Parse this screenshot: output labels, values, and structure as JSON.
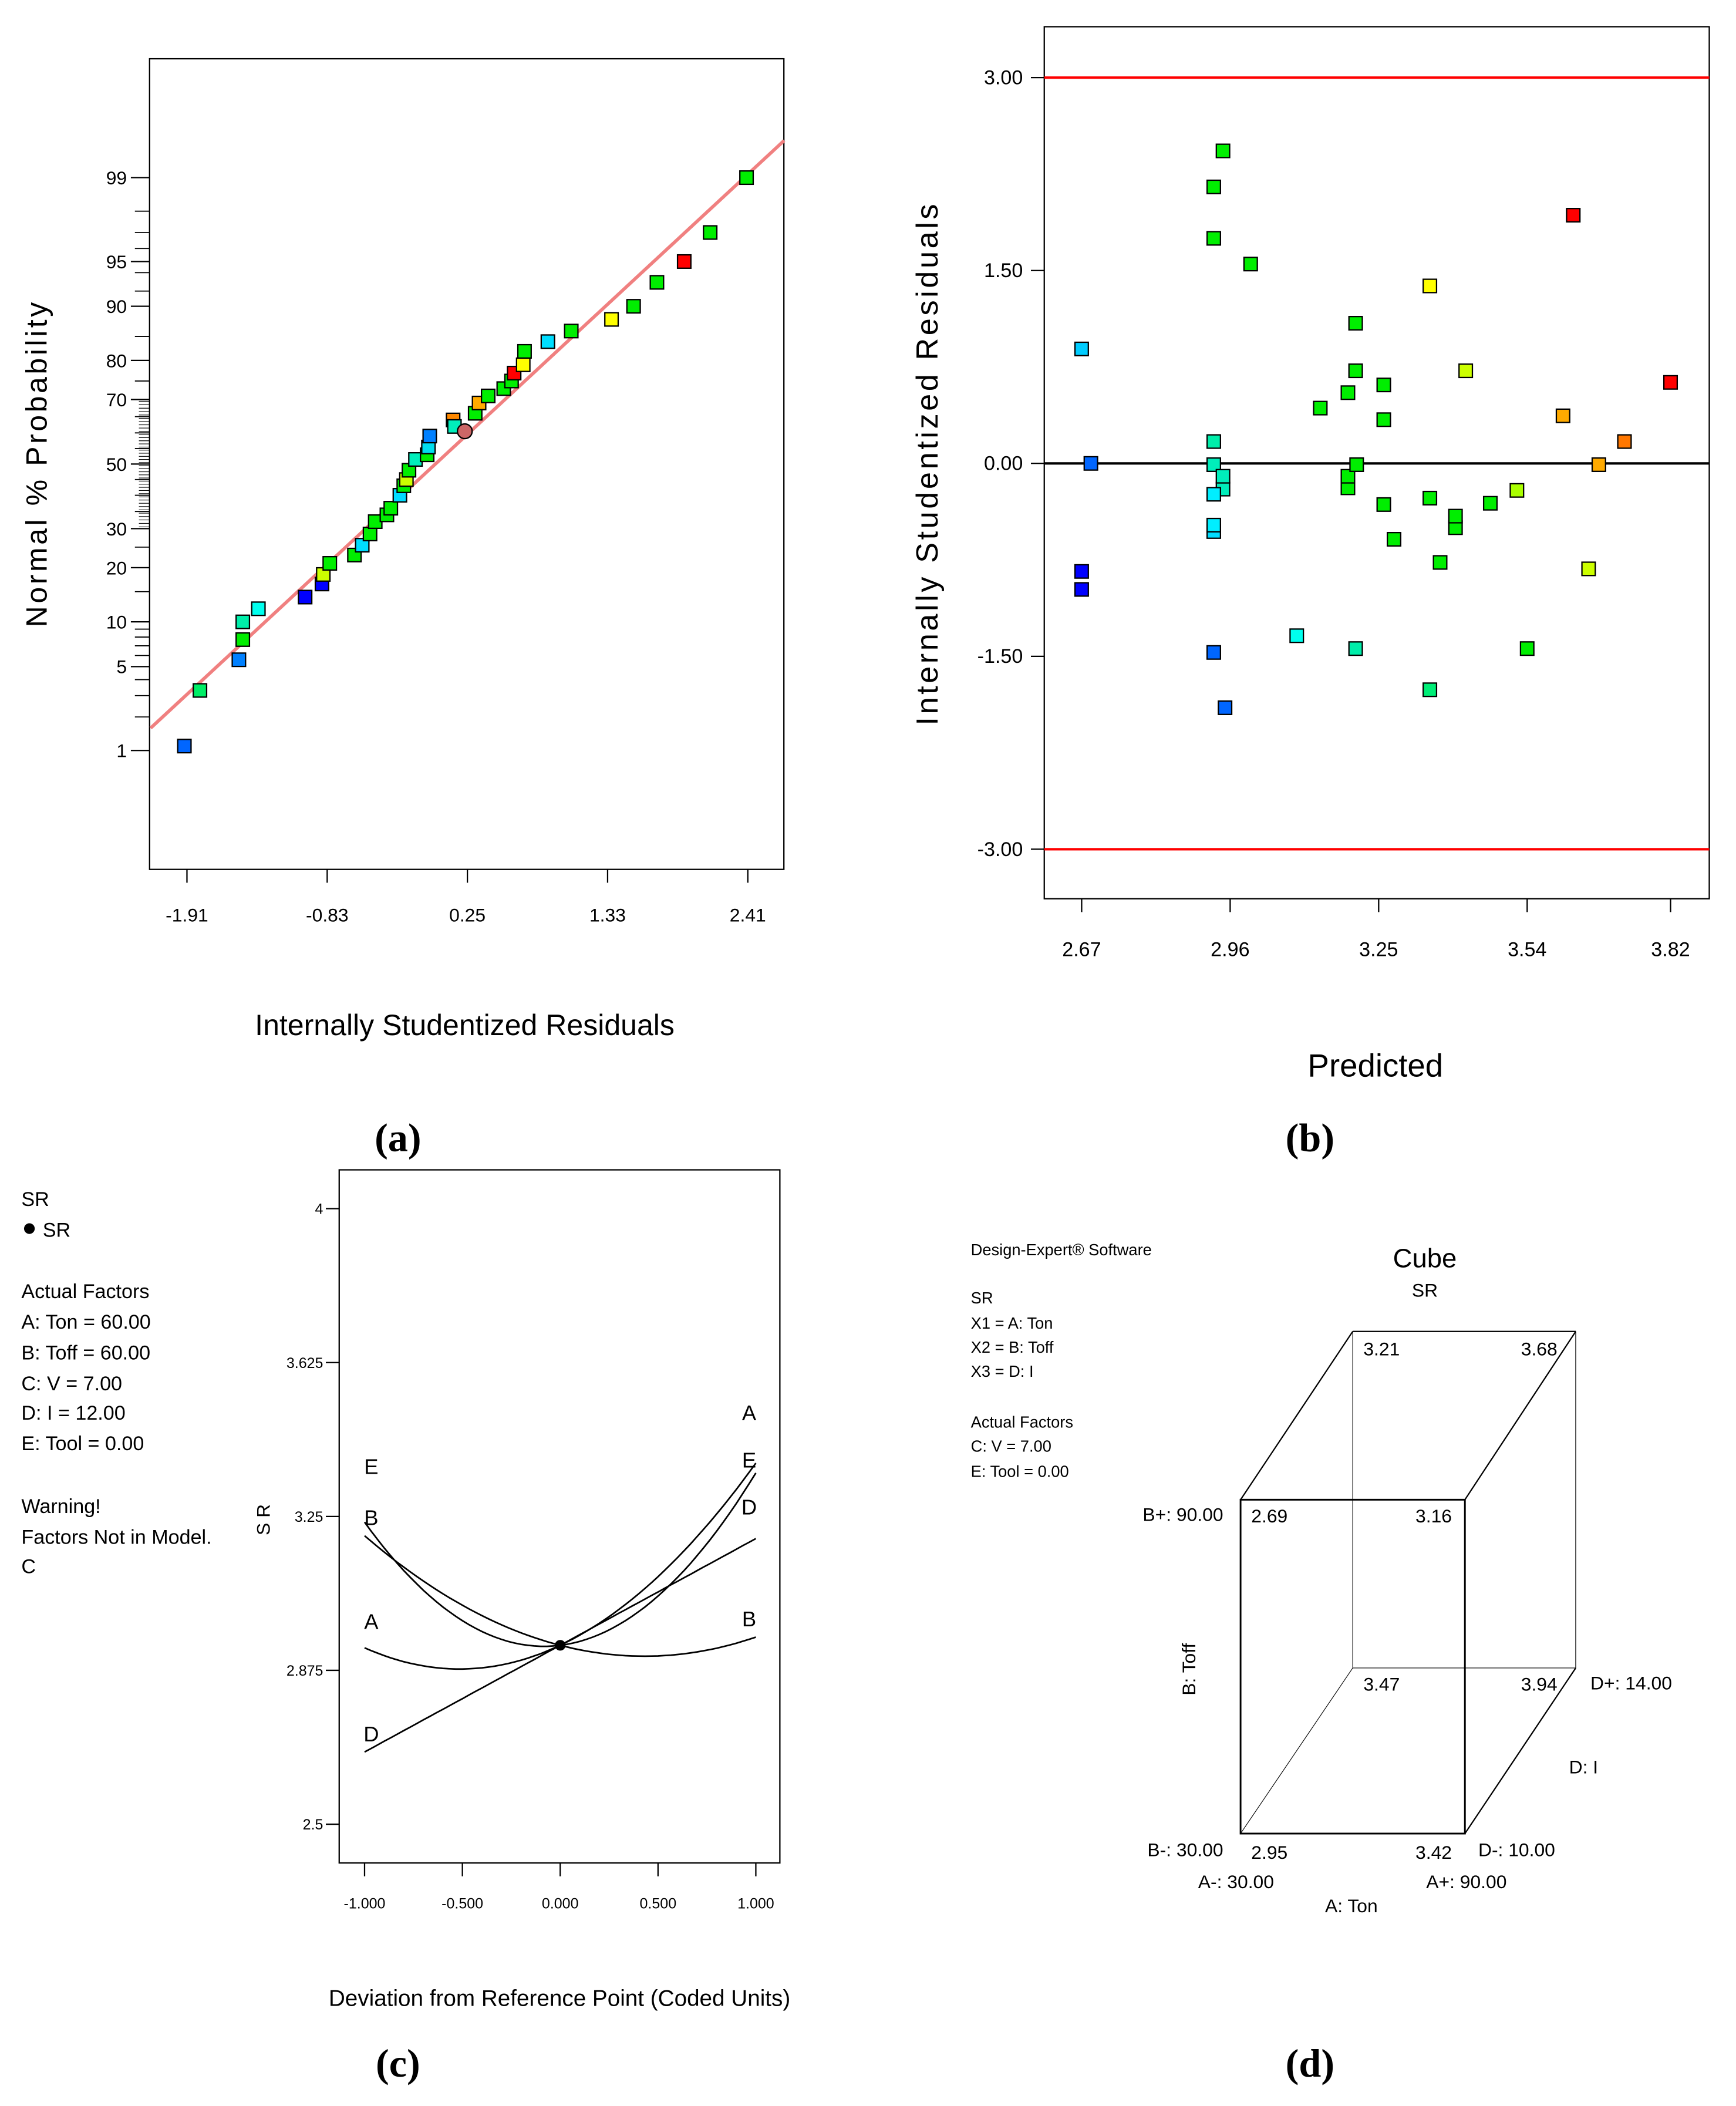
{
  "captions": {
    "a": "(a)",
    "b": "(b)",
    "c": "(c)",
    "d": "(d)"
  },
  "chart_data": [
    {
      "id": "a",
      "type": "scatter",
      "title": "",
      "xlabel": "Internally Studentized Residuals",
      "ylabel": "Normal % Probability",
      "xlim": [
        -2.19,
        2.69
      ],
      "x_ticks": [
        -1.91,
        -0.83,
        0.25,
        1.33,
        2.41
      ],
      "x_tick_labels": [
        "-1.91",
        "-0.83",
        "0.25",
        "1.33",
        "2.41"
      ],
      "y_scale": "normal-probability",
      "y_ticks": [
        1,
        5,
        10,
        20,
        30,
        50,
        70,
        80,
        90,
        95,
        99
      ],
      "y_tick_labels": [
        "1",
        "5",
        "10",
        "20",
        "30",
        "50",
        "70",
        "80",
        "90",
        "95",
        "99"
      ],
      "fit_line": [
        [
          -2.19,
          1.6
        ],
        [
          2.69,
          99.57
        ]
      ],
      "fit_line_color": "#f08080",
      "points": [
        [
          -1.93,
          1.1,
          "#0066ff"
        ],
        [
          -1.81,
          3.3,
          "#00ee66"
        ],
        [
          -1.51,
          5.6,
          "#0080ff"
        ],
        [
          -1.48,
          7.7,
          "#00ee00"
        ],
        [
          -1.48,
          10,
          "#00eeaa"
        ],
        [
          -1.36,
          12,
          "#00ffee"
        ],
        [
          -1.0,
          14,
          "#0000ff"
        ],
        [
          -0.87,
          16.5,
          "#0000ff"
        ],
        [
          -0.86,
          18.5,
          "#ccff00"
        ],
        [
          -0.81,
          21,
          "#00ee00"
        ],
        [
          -0.62,
          23,
          "#00ee00"
        ],
        [
          -0.56,
          25.5,
          "#00ddff"
        ],
        [
          -0.5,
          28.5,
          "#00ee00"
        ],
        [
          -0.46,
          32,
          "#00ee00"
        ],
        [
          -0.37,
          34,
          "#00ee00"
        ],
        [
          -0.34,
          36,
          "#00ee00"
        ],
        [
          -0.27,
          40,
          "#00ddff"
        ],
        [
          -0.24,
          43,
          "#00ee00"
        ],
        [
          -0.22,
          45,
          "#ccff00"
        ],
        [
          -0.2,
          48,
          "#00ee00"
        ],
        [
          -0.15,
          51.5,
          "#00eebb"
        ],
        [
          -0.06,
          53,
          "#00ee00"
        ],
        [
          -0.05,
          55.5,
          "#00ddee"
        ],
        [
          -0.04,
          59,
          "#0080ff"
        ],
        [
          0.14,
          64,
          "#ff8800"
        ],
        [
          0.15,
          62,
          "#00eebb"
        ],
        [
          0.31,
          66,
          "#00ee00"
        ],
        [
          0.34,
          69,
          "#ffaa00"
        ],
        [
          0.41,
          71,
          "#00ee00"
        ],
        [
          0.53,
          73,
          "#00ee00"
        ],
        [
          0.59,
          75,
          "#00ee00"
        ],
        [
          0.61,
          77,
          "#ff0000"
        ],
        [
          0.68,
          79,
          "#ffff00"
        ],
        [
          0.69,
          82,
          "#00ee00"
        ],
        [
          0.87,
          84,
          "#00ddff"
        ],
        [
          1.05,
          86,
          "#00ee00"
        ],
        [
          1.36,
          88,
          "#ffff00"
        ],
        [
          1.53,
          90,
          "#00ee00"
        ],
        [
          1.71,
          93,
          "#00ee00"
        ],
        [
          1.92,
          95,
          "#ff0000"
        ],
        [
          2.12,
          97,
          "#00ee00"
        ],
        [
          2.4,
          99,
          "#00ee00"
        ]
      ],
      "highlight_point": [
        0.23,
        60.5,
        "#cc6666"
      ]
    },
    {
      "id": "b",
      "type": "scatter",
      "title": "",
      "xlabel": "Predicted",
      "ylabel": "Internally Studentized Residuals",
      "xlim": [
        2.597,
        3.895
      ],
      "ylim": [
        -3.45,
        3.38
      ],
      "x_ticks": [
        2.67,
        2.96,
        3.25,
        3.54,
        3.82
      ],
      "x_tick_labels": [
        "2.67",
        "2.96",
        "3.25",
        "3.54",
        "3.82"
      ],
      "y_ticks": [
        3,
        1.5,
        0,
        -1.5,
        -3
      ],
      "y_tick_labels": [
        "3.00",
        "1.50",
        "0.00",
        "-1.50",
        "-3.00"
      ],
      "limit_lines": [
        3,
        -3
      ],
      "limit_color": "#ff0000",
      "points": [
        [
          2.67,
          0.89,
          "#00ccff"
        ],
        [
          2.688,
          0.0,
          "#0066ff"
        ],
        [
          2.67,
          -0.84,
          "#0000ff"
        ],
        [
          2.67,
          -0.98,
          "#0000ff"
        ],
        [
          2.928,
          2.15,
          "#00ee00"
        ],
        [
          2.946,
          2.43,
          "#00ee00"
        ],
        [
          2.928,
          1.75,
          "#00ee00"
        ],
        [
          3.0,
          1.55,
          "#00ee00"
        ],
        [
          2.928,
          0.17,
          "#00eeaa"
        ],
        [
          2.928,
          -0.01,
          "#00eebb"
        ],
        [
          2.946,
          -0.2,
          "#00eebb"
        ],
        [
          2.946,
          -0.1,
          "#00eebb"
        ],
        [
          2.928,
          -0.24,
          "#00eeff"
        ],
        [
          2.928,
          -0.53,
          "#00ddff"
        ],
        [
          2.928,
          -0.48,
          "#00eeff"
        ],
        [
          2.928,
          -1.47,
          "#0066ff"
        ],
        [
          2.95,
          -1.9,
          "#0066ff"
        ],
        [
          3.09,
          -1.34,
          "#00ffee"
        ],
        [
          3.136,
          0.43,
          "#00ee00"
        ],
        [
          3.19,
          0.55,
          "#00ee00"
        ],
        [
          3.205,
          1.09,
          "#00ee00"
        ],
        [
          3.205,
          0.72,
          "#00ee00"
        ],
        [
          3.19,
          -0.19,
          "#00ee00"
        ],
        [
          3.19,
          -0.1,
          "#00ee00"
        ],
        [
          3.207,
          -0.01,
          "#00ee00"
        ],
        [
          3.205,
          -1.44,
          "#00eeaa"
        ],
        [
          3.26,
          0.61,
          "#00ee00"
        ],
        [
          3.26,
          0.34,
          "#00ee00"
        ],
        [
          3.26,
          -0.32,
          "#00ee00"
        ],
        [
          3.28,
          -0.59,
          "#00ee00"
        ],
        [
          3.35,
          1.38,
          "#ffff00"
        ],
        [
          3.35,
          -0.27,
          "#00ee00"
        ],
        [
          3.35,
          -1.76,
          "#00ee77"
        ],
        [
          3.37,
          -0.77,
          "#00ee00"
        ],
        [
          3.4,
          -0.5,
          "#00ee00"
        ],
        [
          3.4,
          -0.41,
          "#00ee00"
        ],
        [
          3.42,
          0.72,
          "#ccff00"
        ],
        [
          3.468,
          -0.31,
          "#00ee00"
        ],
        [
          3.52,
          -0.21,
          "#aaff00"
        ],
        [
          3.54,
          -1.44,
          "#00ee00"
        ],
        [
          3.61,
          0.37,
          "#ffaa00"
        ],
        [
          3.63,
          1.93,
          "#ff0000"
        ],
        [
          3.66,
          -0.82,
          "#ccff00"
        ],
        [
          3.68,
          -0.01,
          "#ffaa00"
        ],
        [
          3.73,
          0.17,
          "#ff7700"
        ],
        [
          3.82,
          0.63,
          "#ff0000"
        ]
      ]
    },
    {
      "id": "c",
      "type": "line",
      "title": "",
      "xlabel": "Deviation from Reference Point (Coded Units)",
      "ylabel": "S R",
      "xlim": [
        -1.13,
        1.13
      ],
      "ylim": [
        2.405,
        4.094
      ],
      "x_ticks": [
        -1,
        -0.5,
        0,
        0.5,
        1
      ],
      "x_tick_labels": [
        "-1.000",
        "-0.500",
        "0.000",
        "0.500",
        "1.000"
      ],
      "y_ticks": [
        4,
        3.625,
        3.25,
        2.875,
        2.5
      ],
      "y_tick_labels": [
        "4",
        "3.625",
        "3.25",
        "2.875",
        "2.5"
      ],
      "reference_point": [
        0,
        2.936
      ],
      "series": [
        {
          "name": "A",
          "quadratic": [
            0.219,
            0.225,
            2.936
          ]
        },
        {
          "name": "B",
          "quadratic": [
            0.1435,
            -0.1235,
            2.936
          ]
        },
        {
          "name": "D",
          "quadratic": [
            0,
            0.26,
            2.936
          ]
        },
        {
          "name": "E",
          "quadratic": [
            0.36,
            0.06,
            2.936
          ]
        }
      ],
      "legend": {
        "response_title": "SR",
        "response_item": "SR",
        "factors_title": "Actual Factors",
        "factors": [
          "A: Ton = 60.00",
          "B: Toff = 60.00",
          "C: V = 7.00",
          "D: I = 12.00",
          "E: Tool = 0.00"
        ],
        "warning": [
          "Warning!",
          "Factors Not in Model.",
          "C"
        ]
      }
    },
    {
      "id": "d",
      "type": "cube",
      "title": "Cube",
      "subtitle": "SR",
      "info": {
        "software": "Design-Expert® Software",
        "response": "SR",
        "axes": [
          "X1 = A: Ton",
          "X2 = B: Toff",
          "X3 = D: I"
        ],
        "factors_title": "Actual Factors",
        "factors": [
          "C: V = 7.00",
          "E: Tool = 0.00"
        ]
      },
      "corners": {
        "front_top_left": "2.69",
        "front_top_right": "3.16",
        "back_top_left": "3.21",
        "back_top_right": "3.68",
        "back_bottom_left": "3.47",
        "back_bottom_right": "3.94",
        "front_bottom_left": "2.95",
        "front_bottom_right": "3.42"
      },
      "axis_labels": {
        "b_plus": "B+: 90.00",
        "b_minus": "B-: 30.00",
        "b_name": "B: Toff",
        "a_minus": "A-: 30.00",
        "a_plus": "A+: 90.00",
        "a_name": "A: Ton",
        "d_plus": "D+: 14.00",
        "d_minus": "D-: 10.00",
        "d_name": "D: I"
      }
    }
  ]
}
